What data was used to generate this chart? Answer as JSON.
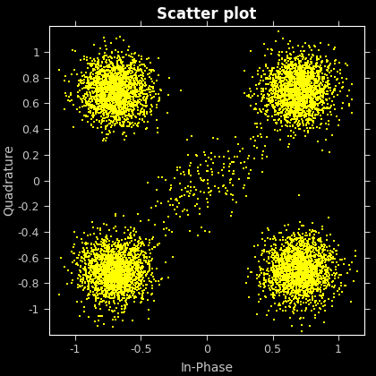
{
  "title": "Scatter plot",
  "xlabel": "In-Phase",
  "ylabel": "Quadrature",
  "background_color": "#000000",
  "text_color": "#ffffff",
  "tick_label_color": "#c8c8c8",
  "marker_color": "#ffff00",
  "marker_size": 1.5,
  "cluster_centers": [
    [
      -0.7,
      0.7
    ],
    [
      0.7,
      0.7
    ],
    [
      -0.7,
      -0.7
    ],
    [
      0.7,
      -0.7
    ]
  ],
  "cluster_std": 0.13,
  "n_cluster_points": 2000,
  "noise_std": 0.25,
  "n_noise_points": 200,
  "xlim": [
    -1.2,
    1.2
  ],
  "ylim": [
    -1.2,
    1.2
  ],
  "xticks": [
    -1,
    -0.5,
    0,
    0.5,
    1
  ],
  "yticks": [
    -1,
    -0.8,
    -0.6,
    -0.4,
    -0.2,
    0,
    0.2,
    0.4,
    0.6,
    0.8,
    1
  ],
  "seed": 42
}
